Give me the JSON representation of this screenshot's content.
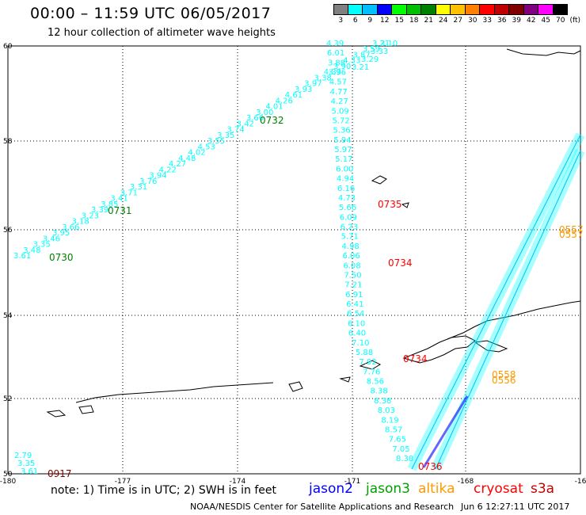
{
  "header": {
    "title": "00:00 – 11:59 UTC 06/05/2017",
    "subtitle": "12 hour collection of altimeter wave heights"
  },
  "scale": {
    "unit": "(ft)",
    "bins": [
      {
        "label": "3",
        "color": "#808080"
      },
      {
        "label": "6",
        "color": "#00ffff"
      },
      {
        "label": "9",
        "color": "#00bfff"
      },
      {
        "label": "12",
        "color": "#0000ff"
      },
      {
        "label": "15",
        "color": "#00ff00"
      },
      {
        "label": "18",
        "color": "#00c000"
      },
      {
        "label": "21",
        "color": "#008000"
      },
      {
        "label": "24",
        "color": "#ffff00"
      },
      {
        "label": "27",
        "color": "#ffc000"
      },
      {
        "label": "30",
        "color": "#ff8000"
      },
      {
        "label": "33",
        "color": "#ff0000"
      },
      {
        "label": "36",
        "color": "#c00000"
      },
      {
        "label": "39",
        "color": "#800000"
      },
      {
        "label": "42",
        "color": "#800080"
      },
      {
        "label": "45",
        "color": "#ff00ff"
      },
      {
        "label": "70",
        "color": "#000000"
      }
    ]
  },
  "axes": {
    "lon_labels": [
      "-180",
      "-177",
      "-174",
      "-171",
      "-168",
      "-16"
    ],
    "lat_labels": [
      "60",
      "58",
      "56",
      "54",
      "52",
      "50"
    ]
  },
  "tracks": {
    "jason3_top": {
      "values": [
        "3.61",
        "3.48",
        "3.35",
        "3.46",
        "3.95",
        "3.66",
        "3.18",
        "3.23",
        "3.39",
        "3.85",
        "3.41",
        "3.71",
        "3.31",
        "3.76",
        "3.94",
        "4.22",
        "4.27",
        "4.48",
        "4.02",
        "4.53",
        "3.55",
        "3.35",
        "3.74",
        "3.42",
        "3.66",
        "3.00",
        "4.01",
        "4.26",
        "4.61",
        "3.93",
        "3.97",
        "3.38",
        "4.33",
        "3.90",
        "4.33",
        "3.87",
        "3.59",
        "3.21"
      ],
      "time_labels": [
        "0730",
        "0731",
        "0732"
      ]
    },
    "descending": {
      "values": [
        "4.39",
        "6.01",
        "3.88",
        "3.96",
        "4.57",
        "4.77",
        "4.27",
        "5.09",
        "5.72",
        "5.36",
        "5.94",
        "5.97",
        "5.17",
        "6.00",
        "4.94",
        "6.16",
        "4.73",
        "5.66",
        "6.09",
        "6.23",
        "5.71",
        "4.98",
        "6.06",
        "6.08",
        "7.50",
        "7.21",
        "6.91",
        "6.41",
        "6.54",
        "6.10",
        "6.40",
        "7.10",
        "5.88",
        "7.92",
        "7.76",
        "8.56",
        "8.38",
        "8.38",
        "8.03",
        "8.19",
        "8.57",
        "7.65",
        "7.05",
        "8.38"
      ],
      "top_values": [
        "3.10",
        "3.33",
        "3.29",
        "3.21"
      ]
    },
    "cryosat_labels": [
      "0735",
      "0734",
      "0734",
      "0736"
    ],
    "altika_labels": [
      "0557",
      "0557",
      "0558",
      "0556"
    ],
    "s3a_label": "0917",
    "bottom_left_values": [
      "2.79",
      "3.35",
      "3.61"
    ]
  },
  "footer": {
    "note": "note: 1) Time is in UTC; 2) SWH is in feet",
    "sats": [
      {
        "name": "jason2",
        "color": "#0000ff"
      },
      {
        "name": "jason3",
        "color": "#00a000"
      },
      {
        "name": "altika",
        "color": "#ff9900"
      },
      {
        "name": "cryosat",
        "color": "#ff0000"
      },
      {
        "name": "s3a",
        "color": "#c00000"
      }
    ],
    "credit": "NOAA/NESDIS Center for Satellite Applications and Research",
    "timestamp": "Jun  6 12:27:11 UTC 2017"
  }
}
